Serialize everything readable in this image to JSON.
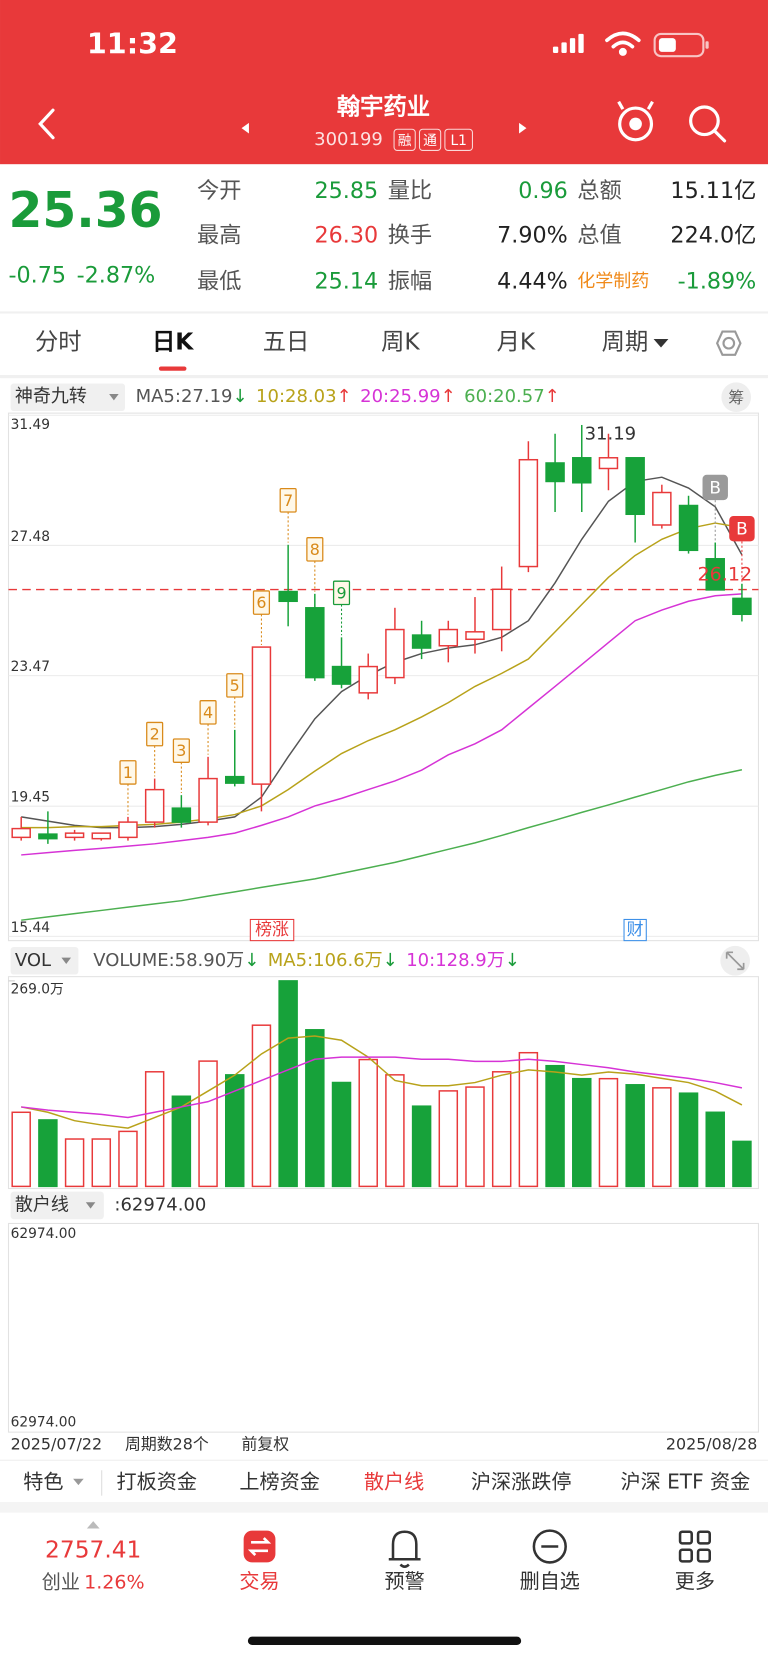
{
  "status_bar": {
    "time": "11:32"
  },
  "header": {
    "title": "翰宇药业",
    "code": "300199",
    "badges": [
      "融",
      "通",
      "L1"
    ]
  },
  "quote": {
    "price": "25.36",
    "change": "-0.75",
    "change_pct": "-2.87%",
    "color": "#1a9b3a",
    "fields": [
      {
        "label": "今开",
        "value": "25.85",
        "value_color": "#1a9b3a"
      },
      {
        "label": "量比",
        "value": "0.96",
        "value_color": "#1a9b3a"
      },
      {
        "label": "总额",
        "value": "15.11亿",
        "value_color": "#222"
      },
      {
        "label": "最高",
        "value": "26.30",
        "value_color": "#e8393a"
      },
      {
        "label": "换手",
        "value": "7.90%",
        "value_color": "#222"
      },
      {
        "label": "总值",
        "value": "224.0亿",
        "value_color": "#222"
      },
      {
        "label": "最低",
        "value": "25.14",
        "value_color": "#1a9b3a"
      },
      {
        "label": "振幅",
        "value": "4.44%",
        "value_color": "#222"
      },
      {
        "label": "化学制药",
        "value": "-1.89%",
        "value_color": "#1a9b3a",
        "label_color": "#f08a1a"
      }
    ]
  },
  "tabs": {
    "items": [
      "分时",
      "日K",
      "五日",
      "周K",
      "月K",
      "周期"
    ],
    "active": 1
  },
  "kline": {
    "type": "candlestick",
    "indicator": "神奇九转",
    "side_button": "筹",
    "ylim": [
      15.44,
      31.49
    ],
    "yticks": [
      31.49,
      27.48,
      23.47,
      19.45,
      15.44
    ],
    "grid": true,
    "up_color": "#e8393a",
    "down_color": "#17a23a",
    "categories": [
      "2025/07/22",
      null,
      null,
      null,
      null,
      null,
      null,
      null,
      null,
      null,
      null,
      null,
      null,
      null,
      null,
      null,
      null,
      null,
      null,
      null,
      null,
      null,
      null,
      null,
      null,
      null,
      null,
      "2025/08/28"
    ],
    "open": [
      18.49,
      18.59,
      18.49,
      18.45,
      18.49,
      18.96,
      19.39,
      18.96,
      20.36,
      20.13,
      26.06,
      25.56,
      23.75,
      22.94,
      23.41,
      24.72,
      24.39,
      24.59,
      24.89,
      26.83,
      30.02,
      30.18,
      29.85,
      30.18,
      28.11,
      28.71,
      27.07,
      25.85
    ],
    "high": [
      19.12,
      19.29,
      18.72,
      18.62,
      19.12,
      20.3,
      19.79,
      20.97,
      21.8,
      24.35,
      27.5,
      25.99,
      24.65,
      24.15,
      25.56,
      25.16,
      25.16,
      25.89,
      26.83,
      30.69,
      30.92,
      31.19,
      30.92,
      30.18,
      29.35,
      29.01,
      27.57,
      26.3
    ],
    "low": [
      18.39,
      18.29,
      18.39,
      18.39,
      18.39,
      18.79,
      18.79,
      18.86,
      20.06,
      19.29,
      24.99,
      23.31,
      23.08,
      22.74,
      23.21,
      23.98,
      23.88,
      24.15,
      24.22,
      26.66,
      28.51,
      28.51,
      29.18,
      27.57,
      28.0,
      27.23,
      26.16,
      25.14
    ],
    "close": [
      18.76,
      18.45,
      18.62,
      18.62,
      18.96,
      19.96,
      18.96,
      20.3,
      20.16,
      24.35,
      25.76,
      23.41,
      23.21,
      23.75,
      24.89,
      24.32,
      24.89,
      24.82,
      26.13,
      30.12,
      29.45,
      29.41,
      30.18,
      28.44,
      29.11,
      27.33,
      26.11,
      25.36
    ],
    "ma": [
      {
        "label": "MA5:27.19",
        "trend": "↓",
        "trend_color": "#1a9b3a",
        "color": "#555555",
        "values": [
          19.12,
          18.99,
          18.86,
          18.79,
          18.79,
          18.82,
          18.89,
          18.99,
          19.12,
          19.73,
          20.97,
          22.14,
          22.98,
          23.48,
          23.88,
          24.15,
          24.32,
          24.42,
          24.65,
          25.16,
          26.33,
          27.67,
          28.84,
          29.45,
          29.58,
          29.25,
          28.67,
          27.19
        ]
      },
      {
        "label": "10:28.03",
        "trend": "↑",
        "trend_color": "#e8393a",
        "color": "#b8a21a",
        "values": [
          18.79,
          18.79,
          18.82,
          18.82,
          18.86,
          18.89,
          18.96,
          19.06,
          19.19,
          19.46,
          19.96,
          20.53,
          21.07,
          21.47,
          21.8,
          22.2,
          22.64,
          23.14,
          23.54,
          23.98,
          24.82,
          25.66,
          26.5,
          27.17,
          27.67,
          28.0,
          28.17,
          28.03
        ]
      },
      {
        "label": "20:25.99",
        "trend": "↑",
        "trend_color": "#e8393a",
        "color": "#d633d6",
        "values": [
          17.95,
          18.02,
          18.09,
          18.15,
          18.22,
          18.29,
          18.39,
          18.49,
          18.62,
          18.86,
          19.12,
          19.46,
          19.69,
          19.96,
          20.23,
          20.56,
          21.03,
          21.37,
          21.8,
          22.47,
          23.14,
          23.81,
          24.49,
          25.16,
          25.49,
          25.76,
          25.93,
          25.99
        ]
      },
      {
        "label": "60:20.57",
        "trend": "↑",
        "trend_color": "#e8393a",
        "color": "#4caf50",
        "values": [
          15.94,
          16.04,
          16.14,
          16.24,
          16.34,
          16.44,
          16.54,
          16.68,
          16.81,
          16.95,
          17.08,
          17.21,
          17.38,
          17.55,
          17.72,
          17.92,
          18.12,
          18.32,
          18.55,
          18.79,
          19.02,
          19.26,
          19.49,
          19.73,
          19.96,
          20.2,
          20.4,
          20.57
        ]
      }
    ],
    "nine_turn": [
      null,
      null,
      null,
      null,
      {
        "label": "1",
        "color": "#d98a1a"
      },
      {
        "label": "2",
        "color": "#d98a1a"
      },
      {
        "label": "3",
        "color": "#d98a1a"
      },
      {
        "label": "4",
        "color": "#d98a1a"
      },
      {
        "label": "5",
        "color": "#d98a1a"
      },
      {
        "label": "6",
        "color": "#d98a1a"
      },
      {
        "label": "7",
        "color": "#d98a1a"
      },
      {
        "label": "8",
        "color": "#d98a1a"
      },
      {
        "label": "9",
        "color": "#1a9b3a"
      },
      null,
      null,
      null,
      null,
      null,
      null,
      null,
      null,
      null,
      null,
      null,
      null,
      null,
      null,
      null
    ],
    "tags": [
      null,
      null,
      null,
      null,
      null,
      null,
      null,
      null,
      null,
      {
        "label": "榜涨",
        "color": "#e8393a"
      },
      null,
      null,
      null,
      null,
      null,
      null,
      null,
      null,
      null,
      null,
      null,
      null,
      null,
      {
        "label": "财",
        "color": "#3a8ee8"
      },
      null,
      null,
      null,
      null
    ],
    "signals": [
      null,
      null,
      null,
      null,
      null,
      null,
      null,
      null,
      null,
      null,
      null,
      null,
      null,
      null,
      null,
      null,
      null,
      null,
      null,
      null,
      null,
      null,
      null,
      null,
      null,
      null,
      {
        "label": "B",
        "color": "#9a9a9a"
      },
      {
        "label": "B",
        "color": "#e8393a"
      }
    ],
    "ref_line": 26.12,
    "high_index": 21
  },
  "volume": {
    "selector": "VOL",
    "ylim": [
      0,
      269.0
    ],
    "yticks": [
      {
        "value": 269.0,
        "label": "269.0万"
      }
    ],
    "head": {
      "label": "VOLUME:58.90万",
      "trend": "↓",
      "trend_color": "#1a9b3a",
      "color": "#555555"
    },
    "values": [
      97,
      87,
      62,
      62,
      72,
      150,
      118,
      164,
      146,
      211,
      269.0,
      205,
      136,
      166,
      146,
      105,
      125,
      130,
      150,
      175,
      158,
      141,
      141,
      133,
      129,
      122,
      97,
      58.9
    ],
    "ma": [
      {
        "label": "MA5:106.6万",
        "trend": "↓",
        "trend_color": "#1a9b3a",
        "color": "#b8a21a",
        "values": [
          104.0,
          97.1,
          86.0,
          80.4,
          76.3,
          90.1,
          104.0,
          124.8,
          145.6,
          173.3,
          194.1,
          196.9,
          191.3,
          169.2,
          138.7,
          131.7,
          131.7,
          135.9,
          145.6,
          152.5,
          149.8,
          145.6,
          149.8,
          147.0,
          141.4,
          135.9,
          124.8,
          106.6
        ]
      },
      {
        "label": "10:128.9万",
        "trend": "↓",
        "trend_color": "#1a9b3a",
        "color": "#d633d6",
        "values": [
          104.0,
          99.8,
          97.1,
          94.3,
          90.1,
          97.1,
          104.0,
          110.9,
          124.8,
          138.7,
          152.5,
          166.4,
          169.2,
          169.2,
          169.2,
          166.4,
          166.4,
          163.6,
          163.6,
          166.4,
          163.6,
          159.5,
          155.3,
          149.8,
          145.6,
          141.4,
          135.9,
          128.9
        ]
      }
    ]
  },
  "retail": {
    "selector": "散户线",
    "legend": ":62974.00",
    "top_label": "62974.00",
    "bottom_label": "62974.00"
  },
  "footer": {
    "period_count": "周期数28个",
    "adjust": "前复权"
  },
  "strip": {
    "items": [
      "特色",
      "打板资金",
      "上榜资金",
      "散户线",
      "沪深涨跌停",
      "沪深 ETF 资金"
    ],
    "active": 3
  },
  "nav": {
    "index_value": "2757.41",
    "index_name": "创业",
    "index_change": "1.26%",
    "items": [
      "交易",
      "预警",
      "删自选",
      "更多"
    ]
  }
}
